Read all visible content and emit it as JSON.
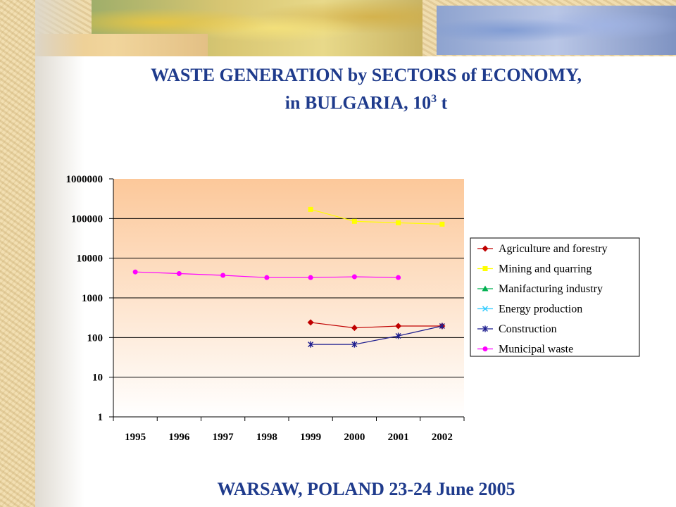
{
  "slide": {
    "title_main": "WASTE GENERATION by SECTORS of ECONOMY,",
    "title_sub_prefix": "in BULGARIA, 10",
    "title_sub_exp": "3",
    "title_sub_suffix": " t",
    "footer": "WARSAW, POLAND 23-24 June 2005"
  },
  "chart_data": {
    "type": "line",
    "title": "",
    "xlabel": "",
    "ylabel": "",
    "log_scale_y": true,
    "ylim": [
      1,
      1000000
    ],
    "y_ticks": [
      "1000000",
      "100000",
      "10000",
      "1000",
      "100",
      "10",
      "1"
    ],
    "categories": [
      "1995",
      "1996",
      "1997",
      "1998",
      "1999",
      "2000",
      "2001",
      "2002"
    ],
    "grid": "horizontal",
    "legend_position": "right",
    "plot_background": "gradient peach to white",
    "series": [
      {
        "name": "Agriculture and forestry",
        "color": "#c00000",
        "marker": "diamond",
        "values": [
          null,
          null,
          null,
          null,
          240,
          175,
          195,
          195
        ]
      },
      {
        "name": "Mining and quarring",
        "color": "#ffff00",
        "marker": "square",
        "values": [
          null,
          null,
          null,
          null,
          170000,
          85000,
          78000,
          72000
        ]
      },
      {
        "name": "Manifacturing industry",
        "color": "#00b050",
        "marker": "triangle",
        "values": [
          null,
          null,
          null,
          null,
          null,
          null,
          null,
          null
        ]
      },
      {
        "name": "Energy production",
        "color": "#33ccff",
        "marker": "x",
        "values": [
          null,
          null,
          null,
          null,
          null,
          null,
          null,
          null
        ]
      },
      {
        "name": "Construction",
        "color": "#1f1f8f",
        "marker": "star",
        "values": [
          null,
          null,
          null,
          null,
          67,
          67,
          110,
          195
        ]
      },
      {
        "name": "Municipal waste",
        "color": "#ff00ff",
        "marker": "circle",
        "values": [
          4500,
          4100,
          3700,
          3250,
          3250,
          3400,
          3250,
          null
        ]
      }
    ]
  }
}
